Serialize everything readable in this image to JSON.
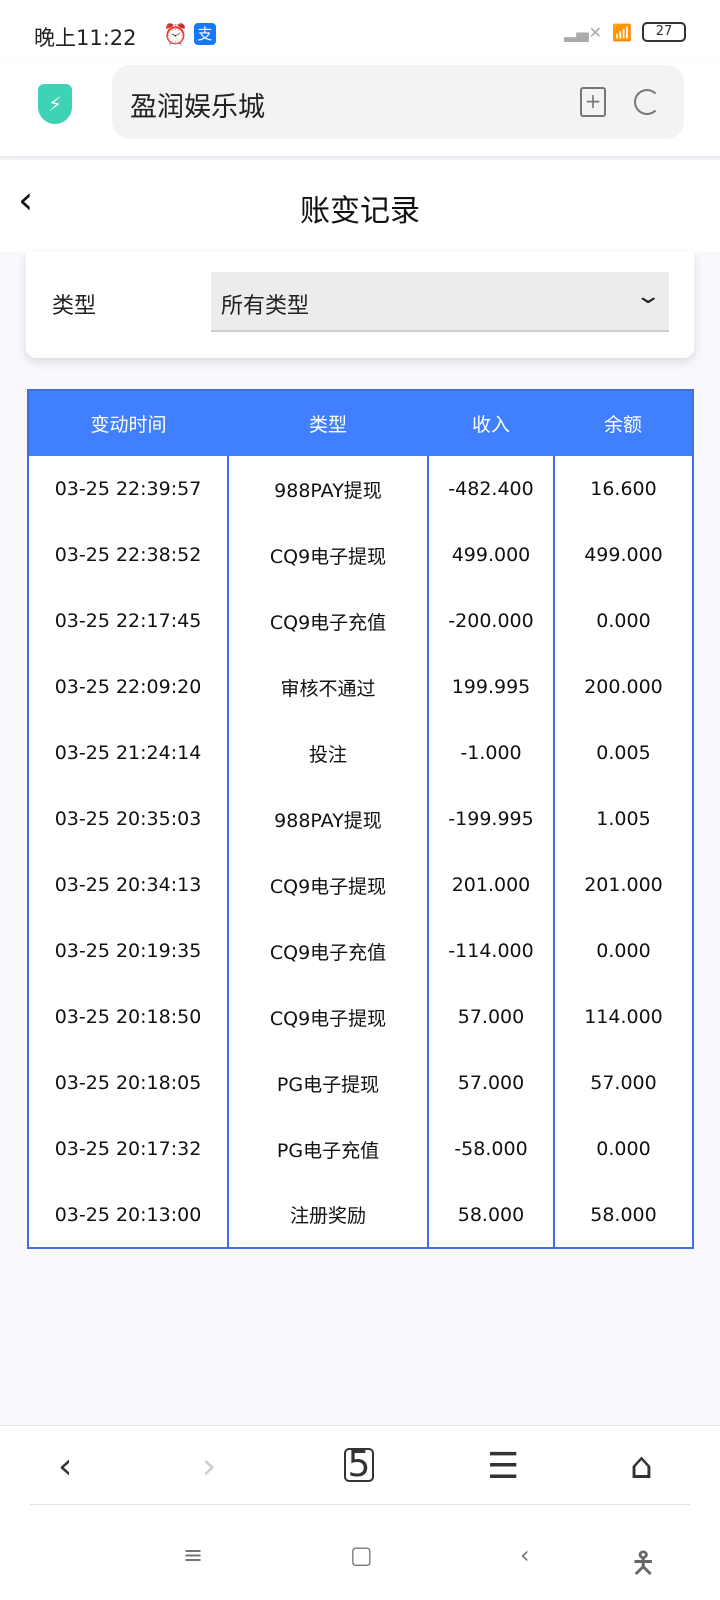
{
  "status": {
    "time": "晚上11:22",
    "battery": "27"
  },
  "browser": {
    "url_title": "盈润娱乐城",
    "tabs_count": "5"
  },
  "page": {
    "title": "账变记录"
  },
  "filter": {
    "label": "类型",
    "selected": "所有类型"
  },
  "table": {
    "headers": [
      "变动时间",
      "类型",
      "收入",
      "余额"
    ],
    "rows": [
      [
        "03-25 22:39:57",
        "988PAY提现",
        "-482.400",
        "16.600"
      ],
      [
        "03-25 22:38:52",
        "CQ9电子提现",
        "499.000",
        "499.000"
      ],
      [
        "03-25 22:17:45",
        "CQ9电子充值",
        "-200.000",
        "0.000"
      ],
      [
        "03-25 22:09:20",
        "审核不通过",
        "199.995",
        "200.000"
      ],
      [
        "03-25 21:24:14",
        "投注",
        "-1.000",
        "0.005"
      ],
      [
        "03-25 20:35:03",
        "988PAY提现",
        "-199.995",
        "1.005"
      ],
      [
        "03-25 20:34:13",
        "CQ9电子提现",
        "201.000",
        "201.000"
      ],
      [
        "03-25 20:19:35",
        "CQ9电子充值",
        "-114.000",
        "0.000"
      ],
      [
        "03-25 20:18:50",
        "CQ9电子提现",
        "57.000",
        "114.000"
      ],
      [
        "03-25 20:18:05",
        "PG电子提现",
        "57.000",
        "57.000"
      ],
      [
        "03-25 20:17:32",
        "PG电子充值",
        "-58.000",
        "0.000"
      ],
      [
        "03-25 20:13:00",
        "注册奖励",
        "58.000",
        "58.000"
      ]
    ]
  },
  "colors": {
    "header_bg": "#4080ff",
    "border": "#3f6fe0",
    "shield": "#3fd2b6"
  }
}
